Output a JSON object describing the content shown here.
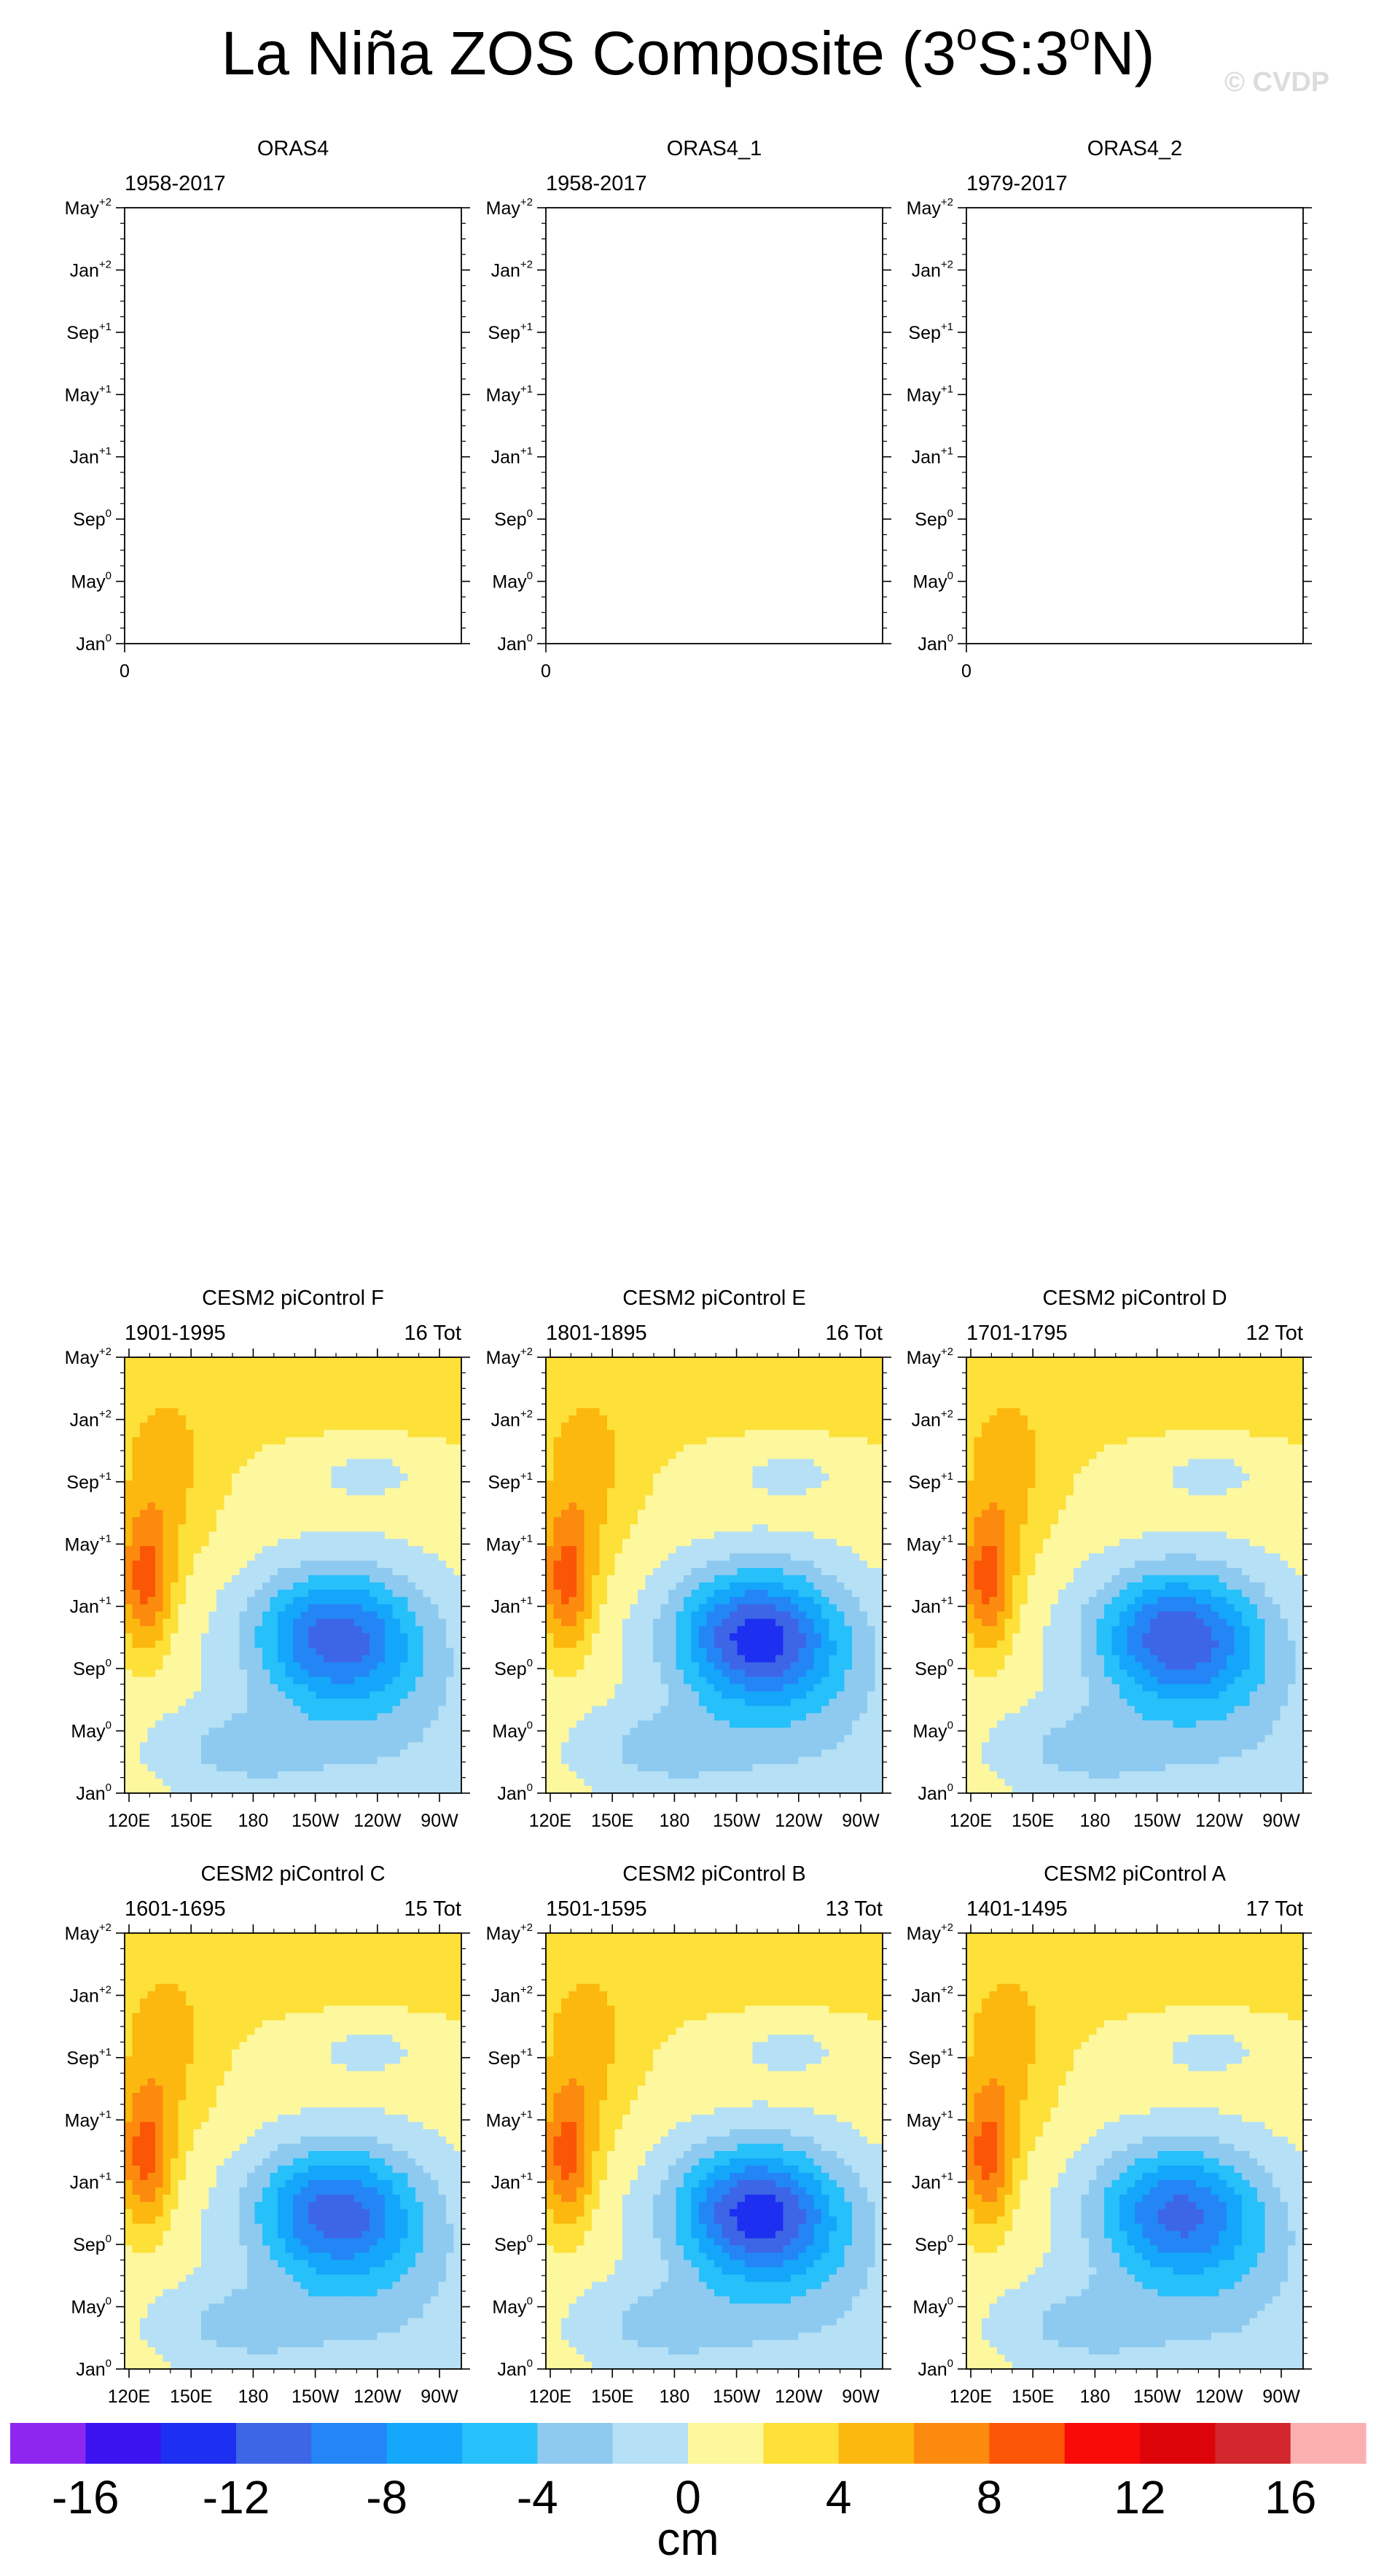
{
  "title": {
    "pre": "La Niña ZOS Composite (3",
    "sup1": "o",
    "mid": "S:3",
    "sup2": "o",
    "post": "N)"
  },
  "watermark": "© CVDP",
  "y_ticks": [
    {
      "base": "May",
      "sup": "+2"
    },
    {
      "base": "Jan",
      "sup": "+2"
    },
    {
      "base": "Sep",
      "sup": "+1"
    },
    {
      "base": "May",
      "sup": "+1"
    },
    {
      "base": "Jan",
      "sup": "+1"
    },
    {
      "base": "Sep",
      "sup": "0"
    },
    {
      "base": "May",
      "sup": "0"
    },
    {
      "base": "Jan",
      "sup": "0"
    }
  ],
  "x_ticks": [
    "120E",
    "150E",
    "180",
    "150W",
    "120W",
    "90W"
  ],
  "colorbar": {
    "colors": [
      "#8f26f0",
      "#3b13f0",
      "#1d2ff0",
      "#3c66e6",
      "#2486f6",
      "#14a6fa",
      "#26c0fa",
      "#8ecaf0",
      "#b6e0f5",
      "#fdf79e",
      "#fde038",
      "#fcb80e",
      "#fc8a0e",
      "#fb5606",
      "#f80b07",
      "#dc0408",
      "#d1262b",
      "#fbb0b0"
    ],
    "labels": [
      "-16",
      "-12",
      "-8",
      "-4",
      "0",
      "4",
      "8",
      "12",
      "16"
    ],
    "units": "cm"
  },
  "panels": [
    {
      "name": "ORAS4",
      "years": "1958-2017",
      "count": "",
      "empty": true,
      "x_single": "0"
    },
    {
      "name": "ORAS4_1",
      "years": "1958-2017",
      "count": "",
      "empty": true,
      "x_single": "0"
    },
    {
      "name": "ORAS4_2",
      "years": "1979-2017",
      "count": "",
      "empty": true,
      "x_single": "0"
    },
    {
      "name": "CESM2 piControl F",
      "years": "1901-1995",
      "count": "16 Tot",
      "empty": false,
      "strength": 0.85
    },
    {
      "name": "CESM2 piControl E",
      "years": "1801-1895",
      "count": "16 Tot",
      "empty": false,
      "strength": 1.0
    },
    {
      "name": "CESM2 piControl D",
      "years": "1701-1795",
      "count": "12 Tot",
      "empty": false,
      "strength": 0.9
    },
    {
      "name": "CESM2 piControl C",
      "years": "1601-1695",
      "count": "15 Tot",
      "empty": false,
      "strength": 0.85
    },
    {
      "name": "CESM2 piControl B",
      "years": "1501-1595",
      "count": "13 Tot",
      "empty": false,
      "strength": 1.0
    },
    {
      "name": "CESM2 piControl A",
      "years": "1401-1495",
      "count": "17 Tot",
      "empty": false,
      "strength": 0.8
    }
  ]
}
